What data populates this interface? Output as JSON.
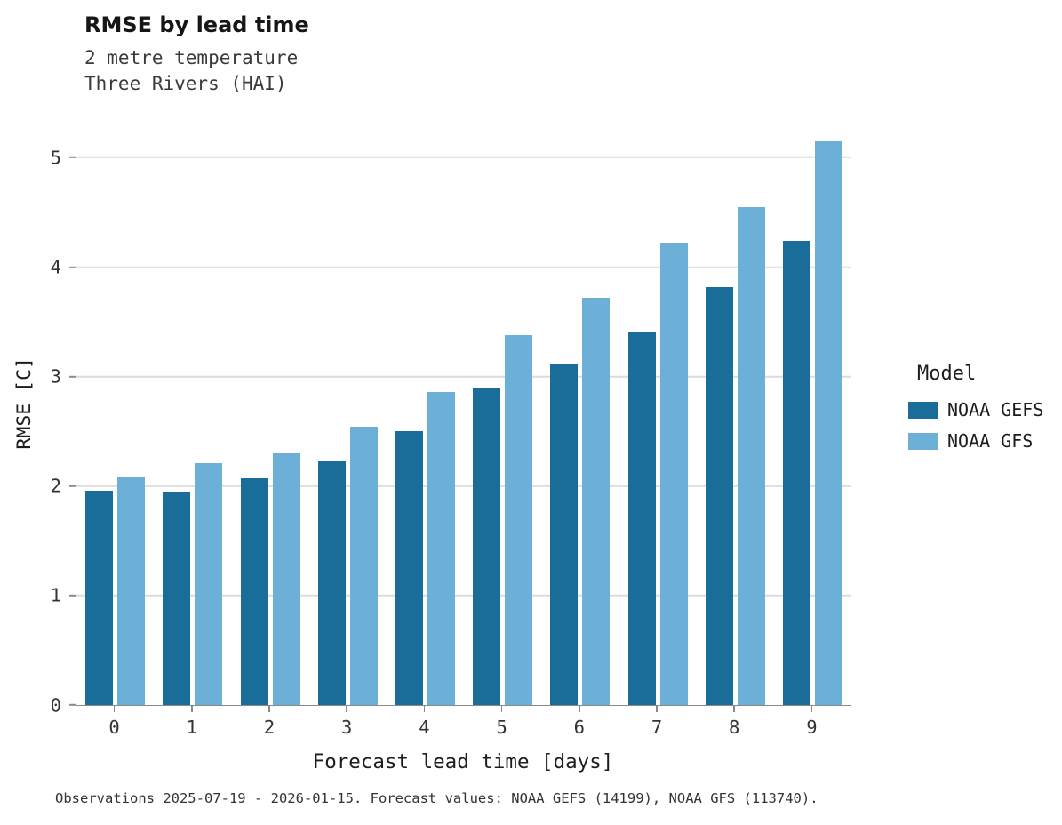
{
  "title": "RMSE by lead time",
  "subtitle_line1": "2 metre temperature",
  "subtitle_line2": "Three Rivers (HAI)",
  "footer": "Observations 2025-07-19 - 2026-01-15. Forecast values: NOAA GEFS (14199), NOAA GFS (113740).",
  "legend": {
    "title": "Model",
    "entries": [
      {
        "label": "NOAA GEFS",
        "color": "#1b6d99"
      },
      {
        "label": "NOAA GFS",
        "color": "#6cb0d7"
      }
    ]
  },
  "chart_data": {
    "type": "bar",
    "title": "RMSE by lead time",
    "subtitle": "2 metre temperature — Three Rivers (HAI)",
    "categories": [
      "0",
      "1",
      "2",
      "3",
      "4",
      "5",
      "6",
      "7",
      "8",
      "9"
    ],
    "series": [
      {
        "name": "NOAA GEFS",
        "color": "#1b6d99",
        "values": [
          1.96,
          1.95,
          2.07,
          2.23,
          2.5,
          2.9,
          3.11,
          3.4,
          3.82,
          4.24
        ]
      },
      {
        "name": "NOAA GFS",
        "color": "#6cb0d7",
        "values": [
          2.09,
          2.21,
          2.31,
          2.54,
          2.86,
          3.38,
          3.72,
          4.22,
          4.55,
          5.15
        ]
      }
    ],
    "xlabel": "Forecast lead time [days]",
    "ylabel": "RMSE [C]",
    "ylim": [
      0,
      5.4
    ],
    "yticks": [
      0,
      1,
      2,
      3,
      4,
      5
    ],
    "grid": true,
    "legend_position": "right"
  }
}
